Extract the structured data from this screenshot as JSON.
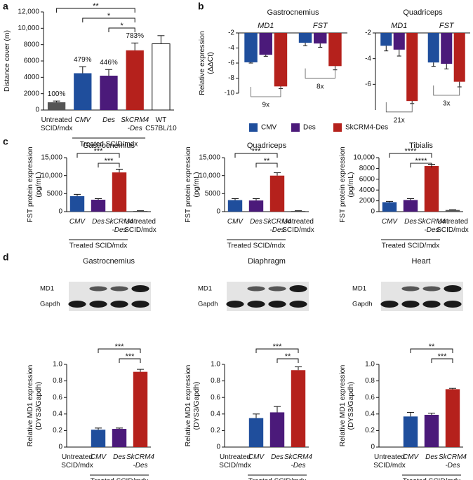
{
  "panel_labels": [
    "a",
    "b",
    "c",
    "d"
  ],
  "chart_data": [
    {
      "type": "bar",
      "ylabel": [
        "Distance cover (m)"
      ],
      "categories": [
        "Untreated SCID/mdx",
        "CMV",
        "Des",
        "SkCRM4 -Des",
        "WT C57BL/10"
      ],
      "values": [
        950,
        4500,
        4200,
        7300,
        8100
      ],
      "errors": [
        150,
        800,
        750,
        900,
        1000
      ],
      "colors": [
        "#555555",
        "#1f4e9c",
        "#4b1a7a",
        "#b5211c",
        "#ffffff"
      ],
      "annotations": [
        "100%",
        "479%",
        "446%",
        "783%"
      ],
      "ylim": [
        0,
        12000
      ],
      "yticks": [
        0,
        2000,
        4000,
        6000,
        8000,
        {
          "value": 10000,
          "label": "10,000"
        },
        {
          "value": 12000,
          "label": "12,000"
        }
      ],
      "group": {
        "label": "Treated SCID/mdx",
        "from": 1,
        "to": 3
      },
      "significance": [
        {
          "from": 0,
          "to": 3,
          "label": "**"
        },
        {
          "from": 1,
          "to": 3,
          "label": "*"
        },
        {
          "from": 2,
          "to": 3,
          "label": "*"
        }
      ]
    },
    {
      "type": "grouped-bar",
      "title": "Gastrocnemius",
      "ylabel": [
        "Relative expression",
        "(ΔΔCt)"
      ],
      "categories": [
        "MD1",
        "FST"
      ],
      "series": [
        {
          "name": "CMV",
          "color": "#1f4e9c",
          "values": [
            -5.9,
            -3.3
          ],
          "errors": [
            0.1,
            0.4
          ]
        },
        {
          "name": "Des",
          "color": "#4b1a7a",
          "values": [
            -4.9,
            -3.4
          ],
          "errors": [
            0.2,
            0.5
          ]
        },
        {
          "name": "SkCRM4-Des",
          "color": "#b5211c",
          "values": [
            -9.1,
            -6.4
          ],
          "errors": [
            0.3,
            0.5
          ]
        }
      ],
      "ylim": [
        -10,
        -2
      ],
      "yticks": [
        -2,
        -4,
        -6,
        -8,
        -10
      ],
      "annotations": [
        "9x",
        "8x"
      ]
    },
    {
      "type": "grouped-bar",
      "title": "Quadriceps",
      "categories": [
        "MD1",
        "FST"
      ],
      "series": [
        {
          "values": [
            -3.0,
            -4.3
          ],
          "errors": [
            0.4,
            0.3
          ]
        },
        {
          "values": [
            -3.3,
            -4.4
          ],
          "errors": [
            0.5,
            0.4
          ]
        },
        {
          "values": [
            -7.3,
            -5.8
          ],
          "errors": [
            0.2,
            0.4
          ]
        }
      ],
      "ylim": [
        -8,
        -2
      ],
      "yticks": [
        -2,
        -4,
        -6
      ],
      "annotations": [
        "21x",
        "3x"
      ]
    },
    {
      "type": "bar",
      "title": "Gastrocnemius",
      "ylabel": [
        "FST protein expression",
        "(pg/mL)"
      ],
      "categories": [
        "CMV",
        "Des",
        "SkCRM4 -Des",
        "Untreated SCID/mdx"
      ],
      "values": [
        4300,
        3300,
        10900,
        200
      ],
      "errors": [
        500,
        300,
        900,
        50
      ],
      "colors": [
        "#1f4e9c",
        "#4b1a7a",
        "#b5211c",
        "#555555"
      ],
      "ylim": [
        0,
        15000
      ],
      "yticks": [
        0,
        5000,
        {
          "value": 10000,
          "label": "10,000"
        },
        {
          "value": 15000,
          "label": "15,000"
        }
      ],
      "group": {
        "label": "Treated SCID/mdx",
        "from": 0,
        "to": 2
      },
      "significance": [
        {
          "from": 0,
          "to": 2,
          "label": "***"
        },
        {
          "from": 1,
          "to": 2,
          "label": "***"
        }
      ]
    },
    {
      "type": "bar",
      "title": "Quadriceps",
      "ylabel": [
        "FST protein expression",
        "(pg/mL)"
      ],
      "categories": [
        "CMV",
        "Des",
        "SkCRM4 -Des",
        "Untreated SCID/mdx"
      ],
      "values": [
        3200,
        3100,
        10000,
        200
      ],
      "errors": [
        400,
        500,
        800,
        50
      ],
      "colors": [
        "#1f4e9c",
        "#4b1a7a",
        "#b5211c",
        "#555555"
      ],
      "ylim": [
        0,
        15000
      ],
      "yticks": [
        0,
        5000,
        {
          "value": 10000,
          "label": "10,000"
        },
        {
          "value": 15000,
          "label": "15,000"
        }
      ],
      "group": {
        "label": "Treated SCID/mdx",
        "from": 0,
        "to": 2
      },
      "significance": [
        {
          "from": 0,
          "to": 2,
          "label": "***"
        },
        {
          "from": 1,
          "to": 2,
          "label": "**"
        }
      ]
    },
    {
      "type": "bar",
      "title": "Tibialis",
      "ylabel": [
        "FST protein expression",
        "(pg/mL)"
      ],
      "categories": [
        "CMV",
        "Des",
        "SkCRM4 -Des",
        "Untreated SCID/mdx"
      ],
      "values": [
        1750,
        2150,
        8450,
        300
      ],
      "errors": [
        150,
        250,
        300,
        50
      ],
      "colors": [
        "#1f4e9c",
        "#4b1a7a",
        "#b5211c",
        "#555555"
      ],
      "ylim": [
        0,
        10000
      ],
      "yticks": [
        0,
        2000,
        4000,
        6000,
        8000,
        {
          "value": 10000,
          "label": "10,000"
        }
      ],
      "group": {
        "label": "Treated SCID/mdx",
        "from": 0,
        "to": 2
      },
      "significance": [
        {
          "from": 0,
          "to": 2,
          "label": "****"
        },
        {
          "from": 1,
          "to": 2,
          "label": "****"
        }
      ]
    },
    {
      "type": "bar",
      "title": "Gastrocnemius",
      "ylabel": [
        "Relative MD1 expression",
        "(DYS3/Gapdh)"
      ],
      "blot_rows": [
        "MD1",
        "Gapdh"
      ],
      "categories": [
        "Untreated SCID/mdx",
        "CMV",
        "Des",
        "SkCRM4 -Des"
      ],
      "values": [
        0,
        0.21,
        0.22,
        0.91
      ],
      "errors": [
        0,
        0.02,
        0.01,
        0.03
      ],
      "colors": [
        "#555555",
        "#1f4e9c",
        "#4b1a7a",
        "#b5211c"
      ],
      "ylim": [
        0,
        1
      ],
      "yticks": [
        0,
        0.2,
        0.4,
        0.6,
        0.8,
        {
          "value": 1,
          "label": "1.0"
        }
      ],
      "group": {
        "label": "Treated SCID/mdx",
        "from": 1,
        "to": 3
      },
      "significance": [
        {
          "from": 1,
          "to": 3,
          "label": "***"
        },
        {
          "from": 2,
          "to": 3,
          "label": "***"
        }
      ]
    },
    {
      "type": "bar",
      "title": "Diaphragm",
      "ylabel": [
        "Relative MD1 expression",
        "(DYS3/Gapdh)"
      ],
      "blot_rows": [
        "MD1",
        "Gapdh"
      ],
      "categories": [
        "Untreated SCID/mdx",
        "CMV",
        "Des",
        "SkCRM4 -Des"
      ],
      "values": [
        0,
        0.35,
        0.42,
        0.93
      ],
      "errors": [
        0,
        0.05,
        0.07,
        0.04
      ],
      "colors": [
        "#555555",
        "#1f4e9c",
        "#4b1a7a",
        "#b5211c"
      ],
      "ylim": [
        0,
        1
      ],
      "yticks": [
        0,
        0.2,
        0.4,
        0.6,
        0.8,
        {
          "value": 1,
          "label": "1.0"
        }
      ],
      "group": {
        "label": "Treated SCID/mdx",
        "from": 1,
        "to": 3
      },
      "significance": [
        {
          "from": 1,
          "to": 3,
          "label": "***"
        },
        {
          "from": 2,
          "to": 3,
          "label": "**"
        }
      ]
    },
    {
      "type": "bar",
      "title": "Heart",
      "ylabel": [
        "Relative MD1 expression",
        "(DYS3/Gapdh)"
      ],
      "blot_rows": [
        "MD1",
        "Gapdh"
      ],
      "categories": [
        "Untreated SCID/mdx",
        "CMV",
        "Des",
        "SkCRM4 -Des"
      ],
      "values": [
        0,
        0.37,
        0.39,
        0.7
      ],
      "errors": [
        0,
        0.05,
        0.02,
        0.01
      ],
      "colors": [
        "#555555",
        "#1f4e9c",
        "#4b1a7a",
        "#b5211c"
      ],
      "ylim": [
        0,
        1
      ],
      "yticks": [
        0,
        0.2,
        0.4,
        0.6,
        0.8,
        {
          "value": 1,
          "label": "1.0"
        }
      ],
      "group": {
        "label": "Treated SCID/mdx",
        "from": 1,
        "to": 3
      },
      "significance": [
        {
          "from": 1,
          "to": 3,
          "label": "**"
        },
        {
          "from": 2,
          "to": 3,
          "label": "***"
        }
      ]
    }
  ]
}
